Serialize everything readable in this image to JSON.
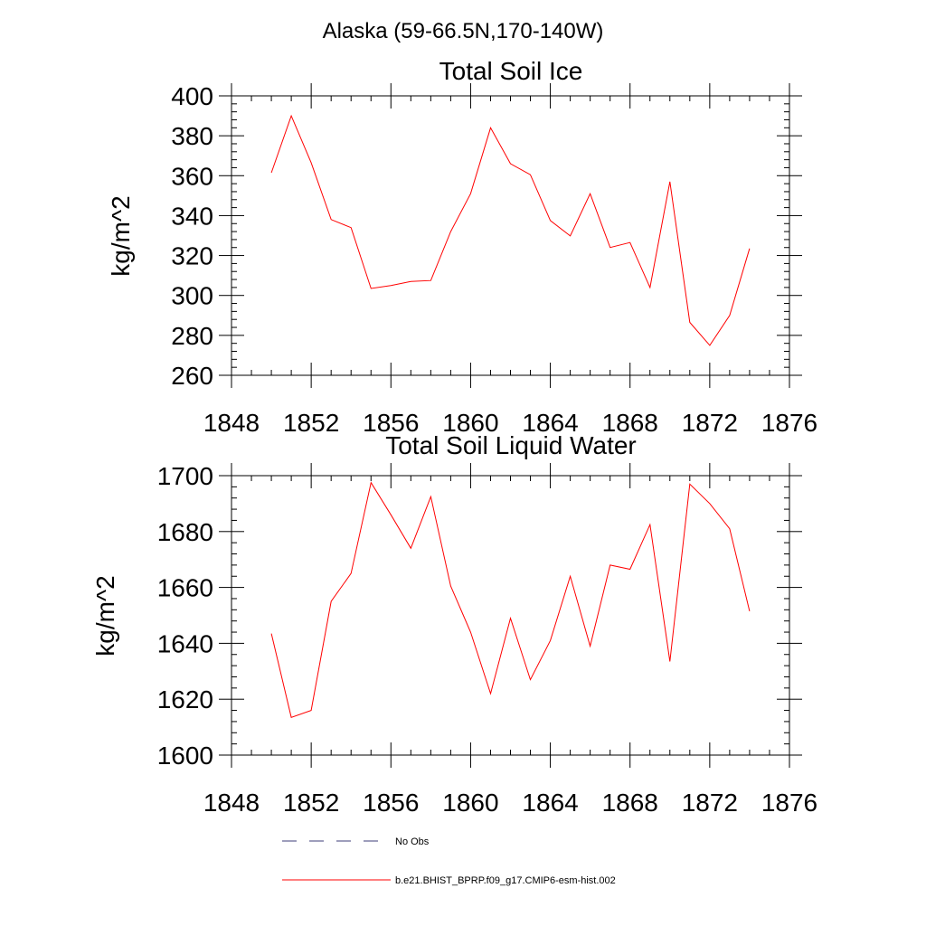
{
  "figure": {
    "main_title": "Alaska (59-66.5N,170-140W)",
    "series_color": "#ff0000",
    "obs_color": "#3c3c78"
  },
  "legend": {
    "items": [
      {
        "label": "No Obs",
        "style": "dashed"
      },
      {
        "label": "b.e21.BHIST_BPRP.f09_g17.CMIP6-esm-hist.002",
        "style": "solid"
      }
    ]
  },
  "chart_data": [
    {
      "type": "line",
      "title": "Total Soil Ice",
      "xlabel": "",
      "ylabel": "kg/m^2",
      "xlim": [
        1848,
        1876
      ],
      "ylim": [
        260,
        400
      ],
      "x_ticks": [
        1848,
        1852,
        1856,
        1860,
        1864,
        1868,
        1872,
        1876
      ],
      "y_ticks": [
        260,
        280,
        300,
        320,
        340,
        360,
        380,
        400
      ],
      "grid": false,
      "series": [
        {
          "name": "b.e21.BHIST_BPRP.f09_g17.CMIP6-esm-hist.002",
          "x": [
            1850,
            1851,
            1852,
            1853,
            1854,
            1855,
            1856,
            1857,
            1858,
            1859,
            1860,
            1861,
            1862,
            1863,
            1864,
            1865,
            1866,
            1867,
            1868,
            1869,
            1870,
            1871,
            1872,
            1873,
            1874
          ],
          "values": [
            361.5,
            390,
            366.5,
            338,
            334,
            303.5,
            305,
            307,
            307.5,
            332,
            351,
            384,
            366,
            360.5,
            337.5,
            329.8,
            351,
            324,
            326.5,
            304,
            357,
            286.5,
            275,
            290,
            323.5
          ]
        }
      ]
    },
    {
      "type": "line",
      "title": "Total Soil Liquid Water",
      "xlabel": "",
      "ylabel": "kg/m^2",
      "xlim": [
        1848,
        1876
      ],
      "ylim": [
        1600,
        1700
      ],
      "x_ticks": [
        1848,
        1852,
        1856,
        1860,
        1864,
        1868,
        1872,
        1876
      ],
      "y_ticks": [
        1600,
        1620,
        1640,
        1660,
        1680,
        1700
      ],
      "grid": false,
      "series": [
        {
          "name": "b.e21.BHIST_BPRP.f09_g17.CMIP6-esm-hist.002",
          "x": [
            1850,
            1851,
            1852,
            1853,
            1854,
            1855,
            1856,
            1857,
            1858,
            1859,
            1860,
            1861,
            1862,
            1863,
            1864,
            1865,
            1866,
            1867,
            1868,
            1869,
            1870,
            1871,
            1872,
            1873,
            1874
          ],
          "values": [
            1643.5,
            1613.5,
            1616,
            1655,
            1665,
            1697.5,
            1686,
            1674,
            1692.5,
            1660.5,
            1644,
            1622,
            1649,
            1627,
            1641,
            1664,
            1639,
            1668,
            1666.5,
            1682.5,
            1633.5,
            1697,
            1690,
            1681,
            1651.5
          ]
        }
      ]
    }
  ]
}
